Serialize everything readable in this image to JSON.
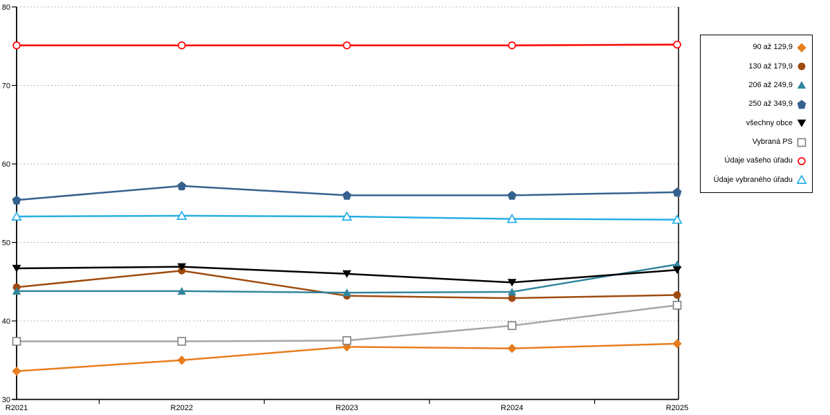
{
  "chart_data": {
    "type": "line",
    "title": "",
    "xlabel": "",
    "ylabel": "",
    "categories": [
      "R2021",
      "R2022",
      "R2023",
      "R2024",
      "R2025"
    ],
    "ylim": [
      30,
      80
    ],
    "yticks": [
      30,
      40,
      50,
      60,
      70,
      80
    ],
    "grid": "horizontal-dotted",
    "legend_position": "right-boxed",
    "series": [
      {
        "name": "90 až 129,9",
        "marker": "diamond",
        "filled": true,
        "color": "#E87D1E",
        "values": [
          33.6,
          35.0,
          36.7,
          36.5,
          37.1
        ]
      },
      {
        "name": "130 až 179,9",
        "marker": "circle",
        "filled": true,
        "color": "#A04A0E",
        "values": [
          44.3,
          46.4,
          43.2,
          42.9,
          43.3
        ]
      },
      {
        "name": "206 až 249,9",
        "marker": "triangle-up",
        "filled": true,
        "color": "#31859C",
        "values": [
          43.8,
          43.8,
          43.6,
          43.7,
          47.2
        ]
      },
      {
        "name": "250 až 349,9",
        "marker": "pentagon",
        "filled": true,
        "color": "#36618E",
        "values": [
          55.4,
          57.2,
          56.0,
          56.0,
          56.4
        ]
      },
      {
        "name": "všechny obce",
        "marker": "triangle-down",
        "filled": true,
        "color": "#000000",
        "values": [
          46.7,
          46.9,
          46.0,
          44.9,
          46.5
        ]
      },
      {
        "name": "Vybraná PS",
        "marker": "square",
        "filled": false,
        "color": "#7F7F7F",
        "line_color": "#A6A6A6",
        "values": [
          37.4,
          37.4,
          37.5,
          39.4,
          42.0
        ]
      },
      {
        "name": "Údaje vašeho úřadu",
        "marker": "circle",
        "filled": false,
        "color": "#FF0000",
        "values": [
          75.1,
          75.1,
          75.1,
          75.1,
          75.2
        ]
      },
      {
        "name": "Údaje vybraného úřadu",
        "marker": "triangle-up",
        "filled": false,
        "color": "#27AEE4",
        "values": [
          53.3,
          53.4,
          53.3,
          53.0,
          52.9
        ]
      }
    ],
    "axis_color": "#000000",
    "gridline_color": "#B3B3B3"
  }
}
